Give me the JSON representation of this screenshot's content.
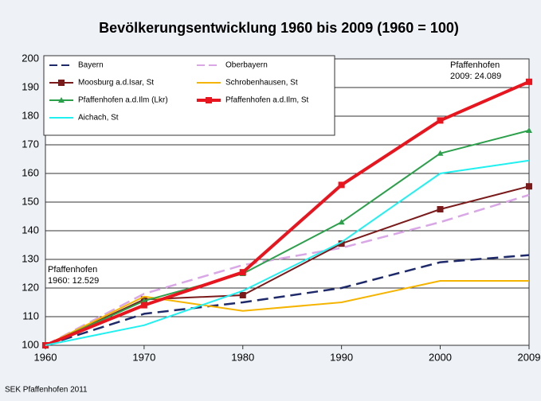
{
  "chart_data": {
    "type": "line",
    "title": "Bevölkerungsentwicklung 1960 bis 2009 (1960 = 100)",
    "x": [
      1960,
      1970,
      1980,
      1990,
      2000,
      2009
    ],
    "xlim": [
      1960,
      2009
    ],
    "xticks": [
      1960,
      1970,
      1980,
      1990,
      2000,
      2009
    ],
    "ylim": [
      100,
      200
    ],
    "yticks": [
      100,
      110,
      120,
      130,
      140,
      150,
      160,
      170,
      180,
      190,
      200
    ],
    "grid": true,
    "legend": "top-left",
    "series": [
      {
        "name": "Bayern",
        "color": "#1f2a6b",
        "dashed": true,
        "marker": null,
        "values": [
          100,
          111,
          115,
          120,
          129,
          131.5
        ]
      },
      {
        "name": "Oberbayern",
        "color": "#d9a6e6",
        "dashed": true,
        "marker": null,
        "values": [
          100,
          118,
          128,
          134,
          143,
          152.5
        ]
      },
      {
        "name": "Moosburg a.d.Isar, St",
        "color": "#7b1a1a",
        "dashed": false,
        "marker": "square",
        "values": [
          100,
          116,
          117.5,
          135.5,
          147.5,
          155.5
        ]
      },
      {
        "name": "Schrobenhausen, St",
        "color": "#f5b400",
        "dashed": false,
        "marker": null,
        "values": [
          100,
          117,
          112,
          115,
          122.5,
          122.5
        ]
      },
      {
        "name": "Pfaffenhofen a.d.Ilm (Lkr)",
        "color": "#2aa04a",
        "dashed": false,
        "marker": "triangle",
        "values": [
          100,
          115.5,
          125,
          143,
          167,
          175
        ]
      },
      {
        "name": "Pfaffenhofen a.d.Ilm, St",
        "color": "#e8141e",
        "dashed": false,
        "marker": "square",
        "thick": true,
        "values": [
          100,
          114,
          125.5,
          156,
          178.5,
          192
        ]
      },
      {
        "name": "Aichach, St",
        "color": "#1ff0f0",
        "dashed": false,
        "marker": null,
        "values": [
          100,
          107,
          119,
          136,
          160,
          164.5
        ]
      }
    ],
    "annotations": [
      {
        "lines": [
          "Pfaffenhofen",
          "1960: 12.529"
        ]
      },
      {
        "lines": [
          "Pfaffenhofen",
          "2009: 24.089"
        ]
      }
    ],
    "source": "SEK Pfaffenhofen 2011"
  }
}
